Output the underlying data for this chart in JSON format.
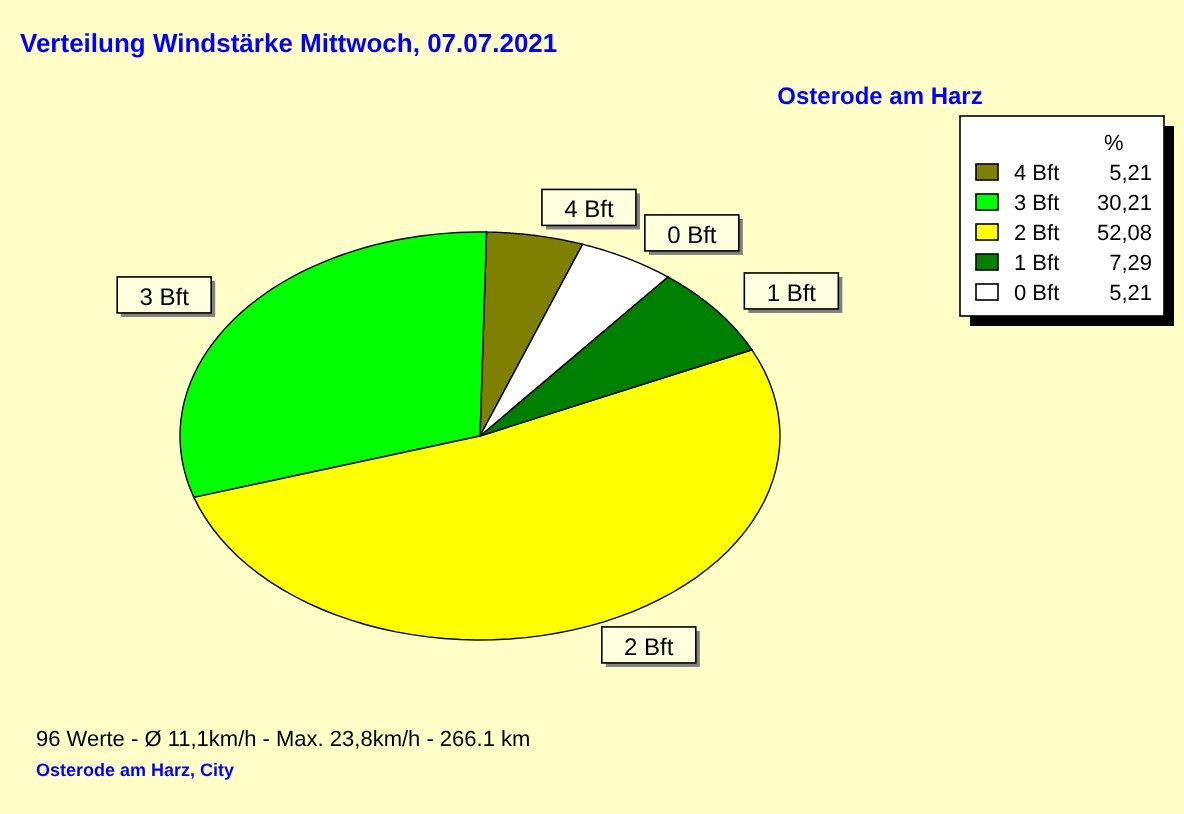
{
  "chart_data": {
    "type": "pie",
    "title": "Verteilung Windstärke  Mittwoch, 07.07.2021",
    "subtitle": "Osterode am Harz",
    "categories": [
      "4 Bft",
      "3 Bft",
      "2 Bft",
      "1 Bft",
      "0 Bft"
    ],
    "values": [
      5.21,
      30.21,
      52.08,
      7.29,
      5.21
    ],
    "value_labels": [
      "5,21",
      "30,21",
      "52,08",
      "7,29",
      "5,21"
    ],
    "colors": [
      "#808000",
      "#00ff00",
      "#ffff00",
      "#008000",
      "#ffffff"
    ],
    "legend": "top right",
    "legend_title": "%",
    "annotations": [
      "96 Werte   -   Ø 11,1km/h  -  Max. 23,8km/h   -   266.1 km",
      "Osterode am Harz, City"
    ]
  }
}
